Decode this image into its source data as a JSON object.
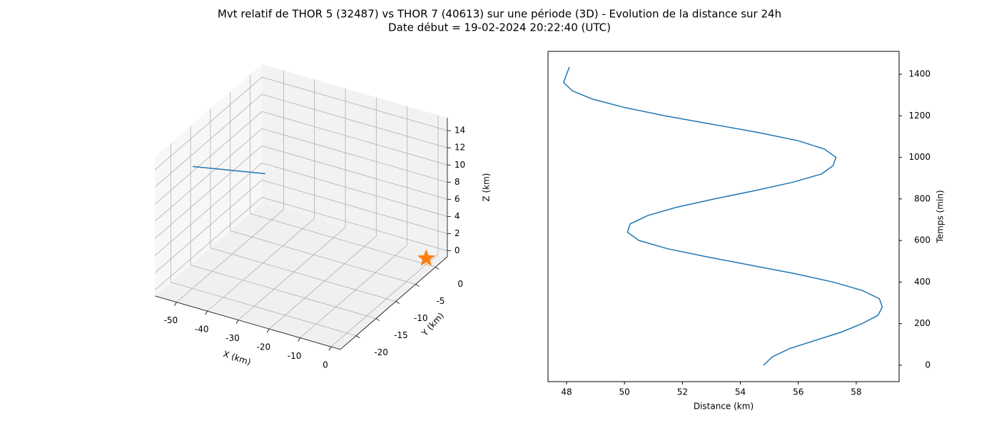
{
  "title": "Mvt relatif de THOR 5 (32487) vs THOR 7 (40613) sur une période (3D) - Evolution de la distance sur 24h",
  "subtitle": "Date début = 19-02-2024 20:22:40 (UTC)",
  "chart_data": [
    {
      "type": "line3d",
      "xlabel": "X (km)",
      "ylabel": "Y (km)",
      "zlabel": "Z (km)",
      "xlim": [
        -57,
        3
      ],
      "ylim": [
        -24,
        3
      ],
      "zlim": [
        -0.7,
        15.5
      ],
      "xticks": [
        -50,
        -40,
        -30,
        -20,
        -10,
        0
      ],
      "yticks": [
        -20,
        -15,
        -10,
        -5,
        0
      ],
      "zticks": [
        0,
        2,
        4,
        6,
        8,
        10,
        12,
        14
      ],
      "series": [
        {
          "color": "#1f77b4",
          "x": [
            -55,
            -45
          ],
          "y": [
            -16,
            -5.5
          ],
          "z": [
            11.4,
            7.4
          ]
        },
        {
          "color": "#ff7f0e",
          "marker": "star",
          "x": [
            0
          ],
          "y": [
            0
          ],
          "z": [
            0
          ]
        }
      ]
    },
    {
      "type": "line",
      "xlabel": "Distance (km)",
      "ylabel": "Temps (min)",
      "yaxis_side": "right",
      "xlim": [
        47.36,
        59.48
      ],
      "ylim": [
        -79,
        1510
      ],
      "xticks": [
        48,
        50,
        52,
        54,
        56,
        58
      ],
      "yticks": [
        0,
        200,
        400,
        600,
        800,
        1000,
        1200,
        1400
      ],
      "color": "#1f77b4",
      "x": [
        54.8,
        55.1,
        55.7,
        56.6,
        57.5,
        58.2,
        58.75,
        58.9,
        58.8,
        58.2,
        57.2,
        55.9,
        54.4,
        52.9,
        51.5,
        50.5,
        50.1,
        50.2,
        50.8,
        51.8,
        53.1,
        54.5,
        55.8,
        56.8,
        57.2,
        57.3,
        56.9,
        56.0,
        54.6,
        53.0,
        51.4,
        50.0,
        48.9,
        48.2,
        47.9,
        48.0,
        48.1
      ],
      "y": [
        0,
        40,
        80,
        120,
        160,
        200,
        240,
        280,
        320,
        360,
        400,
        440,
        480,
        520,
        560,
        600,
        640,
        680,
        720,
        760,
        800,
        840,
        880,
        920,
        960,
        1000,
        1040,
        1080,
        1120,
        1160,
        1200,
        1240,
        1280,
        1320,
        1360,
        1400,
        1435
      ]
    }
  ]
}
